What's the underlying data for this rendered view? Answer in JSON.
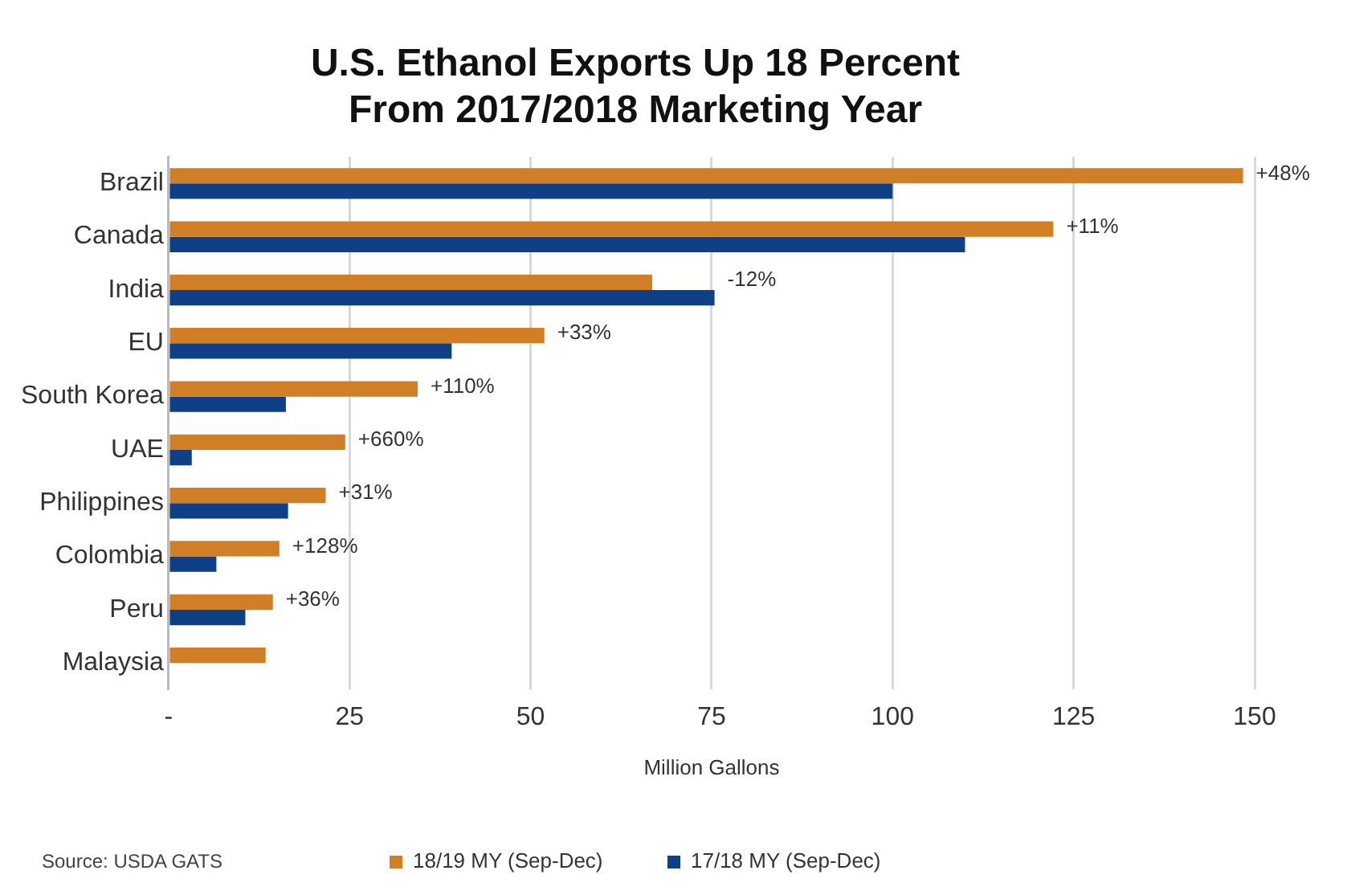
{
  "chart_data": {
    "type": "bar",
    "orientation": "horizontal",
    "title": "U.S. Ethanol Exports Up 18 Percent\nFrom 2017/2018 Marketing Year",
    "xlabel": "Million Gallons",
    "categories": [
      "Brazil",
      "Canada",
      "India",
      "EU",
      "South Korea",
      "UAE",
      "Philippines",
      "Colombia",
      "Peru",
      "Malaysia"
    ],
    "series": [
      {
        "name": "18/19 MY (Sep-Dec)",
        "color": "#d17f26",
        "values": [
          148.4,
          122.2,
          66.8,
          51.9,
          34.4,
          24.4,
          21.7,
          15.3,
          14.4,
          13.4
        ]
      },
      {
        "name": "17/18 MY (Sep-Dec)",
        "color": "#0f3f86",
        "values": [
          100,
          110,
          75.4,
          39.1,
          16.2,
          3.2,
          16.5,
          6.6,
          10.6,
          null
        ]
      }
    ],
    "xlim": [
      0,
      150
    ],
    "xticks": [
      {
        "value": 0,
        "label": "-"
      },
      25,
      50,
      75,
      100,
      125,
      150
    ],
    "grid": "x",
    "legend": "bottom",
    "annotations": [
      {
        "text": "+48%",
        "x": 148.4,
        "y": "Brazil"
      },
      {
        "text": "+11%",
        "x": 122.2,
        "y": "Canada"
      },
      {
        "text": "-12%",
        "x": 75.4,
        "y": "India"
      },
      {
        "text": "+33%",
        "x": 51.9,
        "y": "EU"
      },
      {
        "text": "+110%",
        "x": 34.4,
        "y": "South Korea"
      },
      {
        "text": "+660%",
        "x": 24.4,
        "y": "UAE"
      },
      {
        "text": "+31%",
        "x": 21.7,
        "y": "Philippines"
      },
      {
        "text": "+128%",
        "x": 15.3,
        "y": "Colombia"
      },
      {
        "text": "+36%",
        "x": 14.4,
        "y": "Peru"
      },
      "Source: USDA GATS"
    ]
  }
}
